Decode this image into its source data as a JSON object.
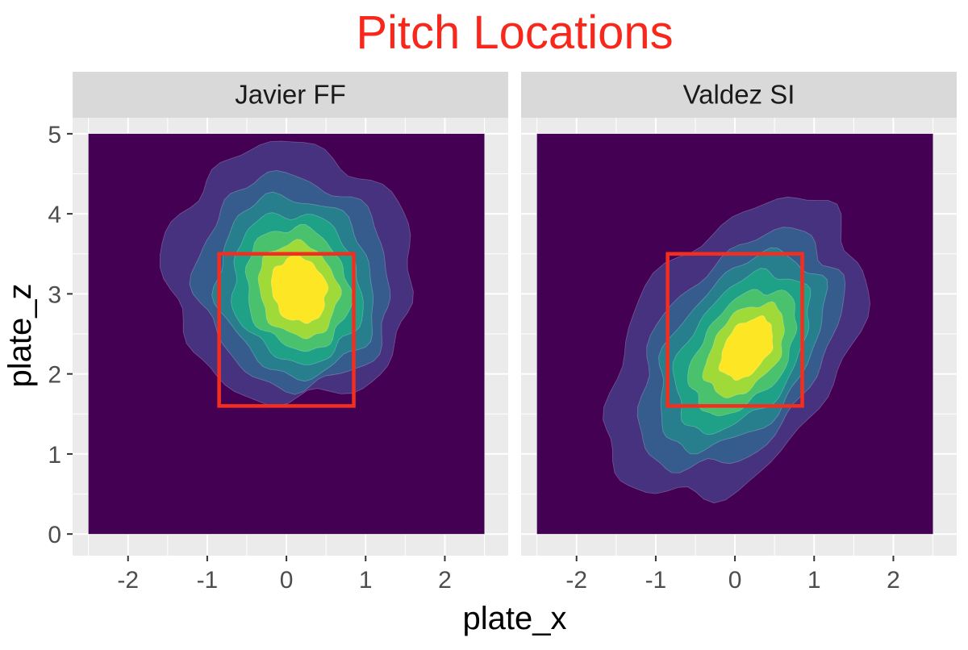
{
  "colors": {
    "title": "#f8271b",
    "panel_bg": "#ebebeb",
    "strip_bg": "#d9d9d9",
    "grid": "#ffffff",
    "zone": "#f42e1f",
    "density": [
      "#440154",
      "#46327e",
      "#365c8d",
      "#277f8e",
      "#1fa187",
      "#4ac16d",
      "#a0da39",
      "#fde725"
    ]
  },
  "chart_data": {
    "type": "heatmap",
    "subtype": "filled 2D density contours, faceted",
    "title": "Pitch Locations",
    "xlabel": "plate_x",
    "ylabel": "plate_z",
    "xlim": [
      -2.7,
      2.8
    ],
    "ylim": [
      -0.27,
      5.2
    ],
    "x_ticks": [
      -2,
      -1,
      0,
      1,
      2
    ],
    "y_ticks": [
      0,
      1,
      2,
      3,
      4,
      5
    ],
    "x_tick_labels": [
      "-2",
      "-1",
      "0",
      "1",
      "2"
    ],
    "y_tick_labels": [
      "0",
      "1",
      "2",
      "3",
      "4",
      "5"
    ],
    "grid": true,
    "legend": "none",
    "density_extent": {
      "x": [
        -2.5,
        2.5
      ],
      "z": [
        0,
        5
      ]
    },
    "strike_zone": {
      "x": [
        -0.85,
        0.85
      ],
      "z": [
        1.6,
        3.5
      ]
    },
    "panels": [
      {
        "label": "Javier FF",
        "density_peak": {
          "x": 0.15,
          "z": 3.05
        },
        "contour_levels": [
          {
            "level": 1,
            "cx": 0.05,
            "cz": 3.25,
            "rx": 1.55,
            "rz": 1.62,
            "rot": -18
          },
          {
            "level": 2,
            "cx": 0.1,
            "cz": 3.15,
            "rx": 1.2,
            "rz": 1.34,
            "rot": -18
          },
          {
            "level": 3,
            "cx": 0.12,
            "cz": 3.1,
            "rx": 0.97,
            "rz": 1.14,
            "rot": -18
          },
          {
            "level": 4,
            "cx": 0.13,
            "cz": 3.08,
            "rx": 0.8,
            "rz": 0.95,
            "rot": -18
          },
          {
            "level": 5,
            "cx": 0.14,
            "cz": 3.07,
            "rx": 0.64,
            "rz": 0.78,
            "rot": -18
          },
          {
            "level": 6,
            "cx": 0.15,
            "cz": 3.05,
            "rx": 0.49,
            "rz": 0.6,
            "rot": -18
          },
          {
            "level": 7,
            "cx": 0.16,
            "cz": 3.05,
            "rx": 0.34,
            "rz": 0.42,
            "rot": -18
          }
        ]
      },
      {
        "label": "Valdez SI",
        "density_peak": {
          "x": 0.15,
          "z": 2.3
        },
        "contour_levels": [
          {
            "level": 1,
            "cx": 0.0,
            "cz": 2.3,
            "rx": 1.3,
            "rz": 2.1,
            "rot": 35
          },
          {
            "level": 2,
            "cx": 0.05,
            "cz": 2.28,
            "rx": 1.0,
            "rz": 1.68,
            "rot": 35
          },
          {
            "level": 3,
            "cx": 0.07,
            "cz": 2.28,
            "rx": 0.82,
            "rz": 1.38,
            "rot": 35
          },
          {
            "level": 4,
            "cx": 0.09,
            "cz": 2.28,
            "rx": 0.67,
            "rz": 1.12,
            "rot": 35
          },
          {
            "level": 5,
            "cx": 0.11,
            "cz": 2.28,
            "rx": 0.53,
            "rz": 0.88,
            "rot": 35
          },
          {
            "level": 6,
            "cx": 0.13,
            "cz": 2.3,
            "rx": 0.4,
            "rz": 0.65,
            "rot": 35
          },
          {
            "level": 7,
            "cx": 0.15,
            "cz": 2.32,
            "rx": 0.27,
            "rz": 0.43,
            "rot": 35
          }
        ]
      }
    ]
  }
}
